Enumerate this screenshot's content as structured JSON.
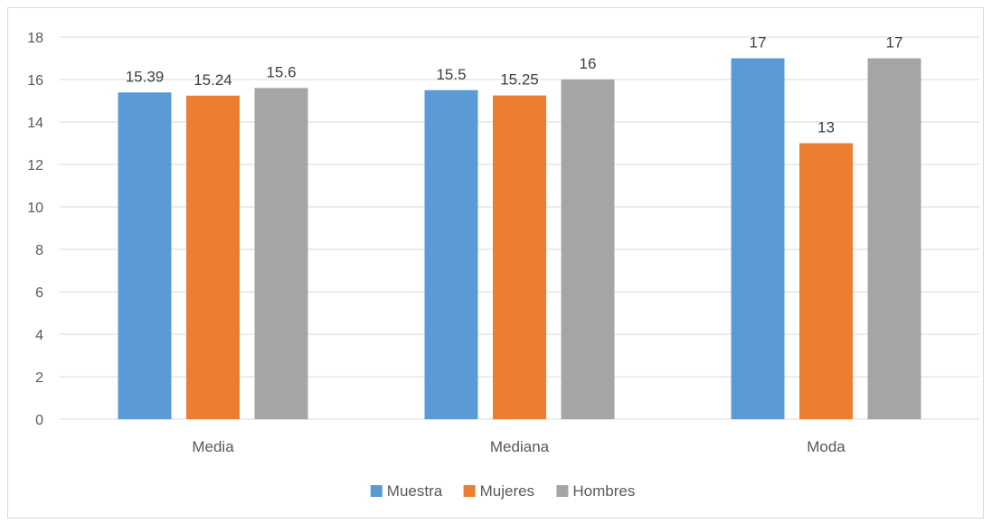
{
  "chart_data": {
    "type": "bar",
    "title": "",
    "xlabel": "",
    "ylabel": "",
    "categories": [
      "Media",
      "Mediana",
      "Moda"
    ],
    "series": [
      {
        "name": "Muestra",
        "values": [
          15.39,
          15.5,
          17
        ],
        "labels": [
          "15.39",
          "15.5",
          "17"
        ],
        "color": "#5b9bd5"
      },
      {
        "name": "Mujeres",
        "values": [
          15.24,
          15.25,
          13
        ],
        "labels": [
          "15.24",
          "15.25",
          "13"
        ],
        "color": "#ed7d31"
      },
      {
        "name": "Hombres",
        "values": [
          15.6,
          16,
          17
        ],
        "labels": [
          "15.6",
          "16",
          "17"
        ],
        "color": "#a5a5a5"
      }
    ],
    "ylim": [
      0,
      18
    ],
    "yticks": [
      "0",
      "2",
      "4",
      "6",
      "8",
      "10",
      "12",
      "14",
      "16",
      "18"
    ],
    "grid": true,
    "legend_position": "bottom",
    "colors": {
      "gridline": "#d9d9d9",
      "axis": "#d9d9d9",
      "text": "#595959"
    }
  }
}
